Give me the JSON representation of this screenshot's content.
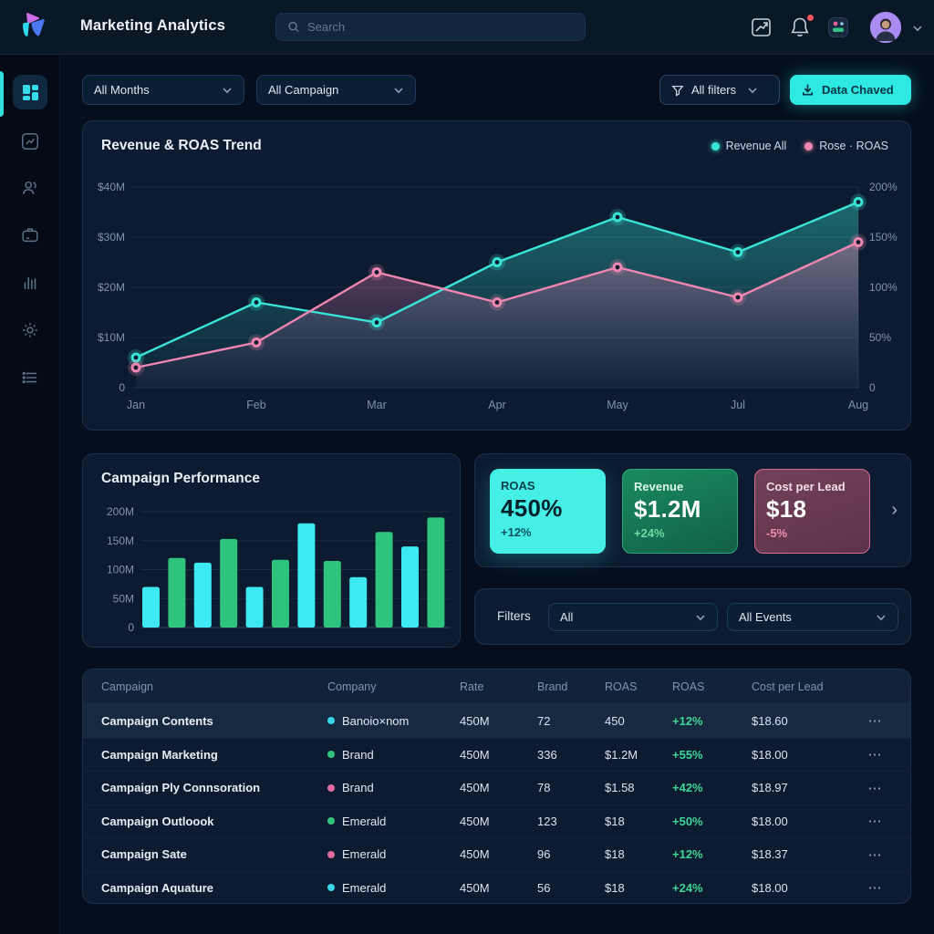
{
  "header": {
    "title": "Marketing Analytics",
    "search_placeholder": "Search",
    "icons": [
      "export-chart-icon",
      "notifications-bell-icon",
      "apps-tile-icon",
      "avatar",
      "chevron-down-icon"
    ],
    "notification_badge": true
  },
  "sidebar": {
    "items": [
      {
        "name": "dashboard",
        "icon": "grid-icon",
        "active": true
      },
      {
        "name": "trends",
        "icon": "chart-trend-icon"
      },
      {
        "name": "audience",
        "icon": "users-icon"
      },
      {
        "name": "campaigns",
        "icon": "briefcase-icon"
      },
      {
        "name": "analytics",
        "icon": "bar-chart-icon"
      },
      {
        "name": "settings",
        "icon": "gear-icon"
      },
      {
        "name": "lists",
        "icon": "list-icon"
      }
    ]
  },
  "toolbar": {
    "months_filter": "All Months",
    "campaign_filter": "All Campaign",
    "all_filters_label": "All filters",
    "export_button_label": "Data Chaved"
  },
  "trend_card": {
    "title": "Revenue & ROAS Trend",
    "legend": [
      {
        "label": "Revenue All",
        "color": "#39e5d6"
      },
      {
        "label": "Rose · ROAS",
        "color": "#ef86b0"
      }
    ]
  },
  "performance_card": {
    "title": "Campaign Performance"
  },
  "kpis": [
    {
      "label": "ROAS",
      "value": "450%",
      "delta": "+12%",
      "variant": "cyan"
    },
    {
      "label": "Revenue",
      "value": "$1.2M",
      "delta": "+24%",
      "variant": "green"
    },
    {
      "label": "Cost per Lead",
      "value": "$18",
      "delta": "-5%",
      "variant": "rose"
    }
  ],
  "kpi_next_glyph": "›",
  "filters_panel": {
    "label": "Filters",
    "category_value": "All",
    "events_value": "All Events"
  },
  "table": {
    "headers": [
      "Campaign",
      "Company",
      "Rate",
      "Brand",
      "ROAS",
      "ROAS",
      "Cost per Lead"
    ],
    "row_menu_glyph": "⋯",
    "rows": [
      {
        "campaign": "Campaign Contents",
        "company": "Banoio×nom",
        "dot_color": "#38d6e8",
        "rate": "450M",
        "brand": "72",
        "roas": "450",
        "delta": "+12%",
        "cpl": "$18.60",
        "highlight": true
      },
      {
        "campaign": "Campaign Marketing",
        "company": "Brand",
        "dot_color": "#2fc47e",
        "rate": "450M",
        "brand": "336",
        "roas": "$1.2M",
        "delta": "+55%",
        "cpl": "$18.00",
        "highlight": false
      },
      {
        "campaign": "Campaign Ply Connsoration",
        "company": "Brand",
        "dot_color": "#e06c9f",
        "rate": "450M",
        "brand": "78",
        "roas": "$1.58",
        "delta": "+42%",
        "cpl": "$18.97",
        "highlight": false
      },
      {
        "campaign": "Campaign Outloook",
        "company": "Emerald",
        "dot_color": "#2fc47e",
        "rate": "450M",
        "brand": "123",
        "roas": "$18",
        "delta": "+50%",
        "cpl": "$18.00",
        "highlight": false
      },
      {
        "campaign": "Campaign Sate",
        "company": "Emerald",
        "dot_color": "#e06c9f",
        "rate": "450M",
        "brand": "96",
        "roas": "$18",
        "delta": "+12%",
        "cpl": "$18.37",
        "highlight": false
      },
      {
        "campaign": "Campaign Aquature",
        "company": "Emerald",
        "dot_color": "#38d6e8",
        "rate": "450M",
        "brand": "56",
        "roas": "$18",
        "delta": "+24%",
        "cpl": "$18.00",
        "highlight": false
      }
    ]
  },
  "chart_data": [
    {
      "type": "line",
      "title": "Revenue & ROAS Trend",
      "x": [
        "Jan",
        "Feb",
        "Mar",
        "Apr",
        "May",
        "Jul",
        "Aug"
      ],
      "series": [
        {
          "name": "Revenue All",
          "color": "#39e5d6",
          "axis": "left",
          "values": [
            6,
            17,
            13,
            25,
            34,
            27,
            37
          ]
        },
        {
          "name": "Rose · ROAS",
          "color": "#ef86b0",
          "axis": "right",
          "values": [
            20,
            45,
            115,
            85,
            120,
            90,
            145
          ]
        }
      ],
      "left_axis": {
        "ticks": [
          "$40M",
          "$30M",
          "$20M",
          "$10M",
          "0"
        ],
        "range": [
          0,
          40
        ],
        "unit": "USD millions"
      },
      "right_axis": {
        "ticks": [
          "200%",
          "150%",
          "100%",
          "50%",
          "0"
        ],
        "range": [
          0,
          200
        ],
        "unit": "percent"
      },
      "legend_position": "top-right",
      "grid": true,
      "area_fill": true
    },
    {
      "type": "bar",
      "title": "Campaign Performance",
      "values": [
        70,
        120,
        112,
        153,
        70,
        117,
        180,
        115,
        87,
        165,
        140,
        190
      ],
      "bar_colors_alternating": [
        "#3de9f2",
        "#2fc47e"
      ],
      "yticks": [
        "200M",
        "150M",
        "100M",
        "50M",
        "0"
      ],
      "ylim": [
        0,
        200
      ],
      "grid": true,
      "xlabel": "",
      "ylabel": ""
    }
  ]
}
